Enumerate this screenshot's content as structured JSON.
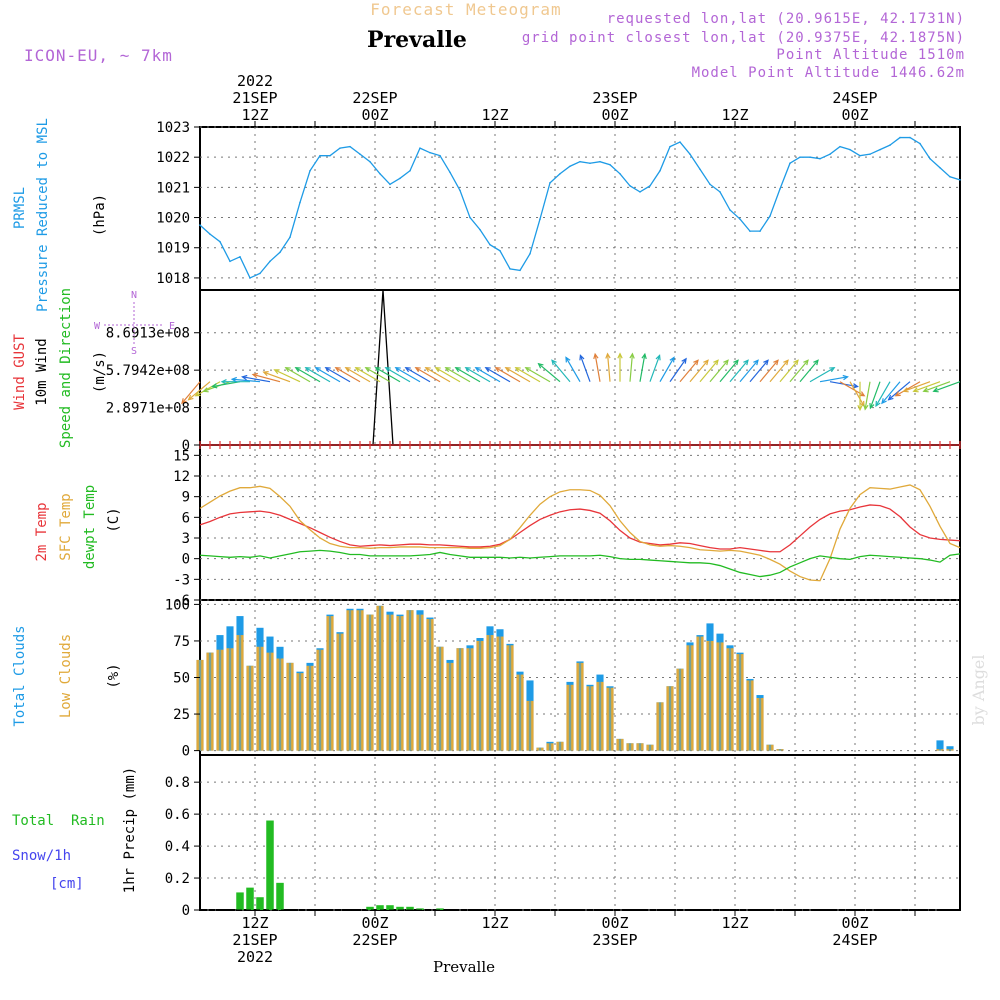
{
  "header": {
    "subtitle": "Forecast Meteogram",
    "location": "Prevalle",
    "model": "ICON-EU, ~ 7km",
    "requested": "requested lon,lat (20.9615E, 42.1731N)",
    "grid_point": "grid point closest lon,lat (20.9375E, 42.1875N)",
    "point_altitude": "Point Altitude 1510m",
    "model_altitude": "Model Point Altitude 1446.62m",
    "footer_location": "Prevalle",
    "watermark": "by Angel"
  },
  "time_axis": {
    "top_labels": [
      {
        "t": 12,
        "lines": [
          "2022",
          "21SEP",
          "12Z"
        ]
      },
      {
        "t": 24,
        "lines": [
          "22SEP",
          "00Z"
        ]
      },
      {
        "t": 36,
        "lines": [
          "12Z"
        ]
      },
      {
        "t": 48,
        "lines": [
          "23SEP",
          "00Z"
        ]
      },
      {
        "t": 60,
        "lines": [
          "12Z"
        ]
      },
      {
        "t": 72,
        "lines": [
          "24SEP",
          "00Z"
        ]
      }
    ],
    "bottom_labels": [
      {
        "t": 12,
        "lines": [
          "12Z",
          "21SEP",
          "2022"
        ]
      },
      {
        "t": 24,
        "lines": [
          "00Z",
          "22SEP"
        ]
      },
      {
        "t": 36,
        "lines": [
          "12Z"
        ]
      },
      {
        "t": 48,
        "lines": [
          "00Z",
          "23SEP"
        ]
      },
      {
        "t": 60,
        "lines": [
          "12Z"
        ]
      },
      {
        "t": 72,
        "lines": [
          "00Z",
          "24SEP"
        ]
      }
    ],
    "range_hours": [
      6.5,
      82.5
    ]
  },
  "colors": {
    "pressure": "#1e9be6",
    "gust": "#e8353a",
    "wind": "#000000",
    "temp2m": "#e8353a",
    "sfctemp": "#e0a93a",
    "dewpt": "#22bb22",
    "total_clouds": "#1e9be6",
    "low_clouds": "#e0a93a",
    "rain": "#22bb22",
    "snow": "#4444ee",
    "purple": "#b366d6",
    "title_orange": "#f0c890",
    "grid": "#777777"
  },
  "panel_labels": {
    "pressure": {
      "lines": [
        "PRMSL",
        "Pressure Reduced to MSL"
      ],
      "unit": "(hPa)"
    },
    "wind": {
      "gust": "Wind GUST",
      "wind10": "10m Wind",
      "speed_dir": "Speed and Direction",
      "unit": "(m/s)"
    },
    "temp": {
      "t2m": "2m Temp",
      "sfc": "SFC Temp",
      "dewpt": "dewpt Temp",
      "unit": "(C)"
    },
    "clouds": {
      "total": "Total Clouds",
      "low": "Low Clouds",
      "unit": "(%)"
    },
    "precip": {
      "rain": "Total  Rain",
      "snow": "Snow/1h",
      "snow_unit": "[cm]",
      "axis": "1hr Precip (mm)"
    },
    "compass": {
      "n": "N",
      "s": "S",
      "e": "E",
      "w": "W"
    }
  },
  "chart_data": [
    {
      "type": "line",
      "name": "pressure",
      "title": "PRMSL Pressure Reduced to MSL",
      "ylabel": "(hPa)",
      "ylim": [
        1017.6,
        1023
      ],
      "yticks": [
        1018,
        1019,
        1020,
        1021,
        1022,
        1023
      ],
      "x_hours": [
        6.5,
        7.5,
        8.5,
        9.5,
        10.5,
        11.5,
        12.5,
        13.5,
        14.5,
        15.5,
        16.5,
        17.5,
        18.5,
        19.5,
        20.5,
        21.5,
        22.5,
        23.5,
        24.5,
        25.5,
        26.5,
        27.5,
        28.5,
        29.5,
        30.5,
        31.5,
        32.5,
        33.5,
        34.5,
        35.5,
        36.5,
        37.5,
        38.5,
        39.5,
        40.5,
        41.5,
        42.5,
        43.5,
        44.5,
        45.5,
        46.5,
        47.5,
        48.5,
        49.5,
        50.5,
        51.5,
        52.5,
        53.5,
        54.5,
        55.5,
        56.5,
        57.5,
        58.5,
        59.5,
        60.5,
        61.5,
        62.5,
        63.5,
        64.5,
        65.5,
        66.5,
        67.5,
        68.5,
        69.5,
        70.5,
        71.5,
        72.5,
        73.5,
        74.5,
        75.5,
        76.5,
        77.5,
        78.5,
        79.5,
        80.5,
        81.5,
        82.5
      ],
      "values": [
        1019.75,
        1019.45,
        1019.2,
        1018.55,
        1018.7,
        1018.0,
        1018.15,
        1018.55,
        1018.85,
        1019.35,
        1020.5,
        1021.55,
        1022.05,
        1022.05,
        1022.3,
        1022.35,
        1022.1,
        1021.85,
        1021.45,
        1021.1,
        1021.3,
        1021.55,
        1022.3,
        1022.15,
        1022.05,
        1021.5,
        1020.9,
        1020.0,
        1019.6,
        1019.1,
        1018.9,
        1018.3,
        1018.25,
        1018.8,
        1019.95,
        1021.15,
        1021.45,
        1021.7,
        1021.85,
        1021.8,
        1021.85,
        1021.75,
        1021.45,
        1021.05,
        1020.85,
        1021.05,
        1021.55,
        1022.35,
        1022.5,
        1022.1,
        1021.6,
        1021.1,
        1020.85,
        1020.25,
        1019.95,
        1019.55,
        1019.55,
        1020.05,
        1020.95,
        1021.8,
        1022.0,
        1022.0,
        1021.95,
        1022.1,
        1022.35,
        1022.25,
        1022.05,
        1022.1,
        1022.25,
        1022.4,
        1022.65,
        1022.65,
        1022.45,
        1021.95,
        1021.65,
        1021.35,
        1021.25
      ]
    },
    {
      "type": "line",
      "name": "wind",
      "title": "Wind GUST / 10m Wind Speed and Direction",
      "ylabel": "(m/s)",
      "ylim": [
        0,
        1200000000.0
      ],
      "ytick_labels": [
        "0",
        "2.8971e+08",
        "5.7942e+08",
        "8.6913e+08"
      ],
      "yticks": [
        0,
        289710000,
        579420000,
        869130000
      ],
      "spike": {
        "x_hours": [
          23.8,
          24.8,
          25.8
        ],
        "values": [
          0,
          1200000000.0,
          0
        ]
      },
      "gust_values": "all 0",
      "arrow_level": 490000000,
      "arrow_dirs": [
        220,
        230,
        240,
        250,
        260,
        270,
        275,
        280,
        285,
        290,
        295,
        300,
        300,
        300,
        300,
        300,
        300,
        300,
        300,
        300,
        300,
        300,
        300,
        300,
        300,
        300,
        300,
        300,
        300,
        300,
        300,
        300,
        300,
        300,
        300,
        300,
        310,
        320,
        330,
        340,
        350,
        355,
        0,
        5,
        10,
        20,
        30,
        35,
        40,
        40,
        40,
        40,
        40,
        40,
        40,
        40,
        40,
        40,
        40,
        40,
        40,
        60,
        80,
        100,
        120,
        150,
        180,
        190,
        200,
        210,
        220,
        230,
        240,
        250,
        250,
        250,
        250
      ],
      "arrow_color_keys": [
        0.5,
        0.5,
        0.5,
        0.5,
        0.5,
        0.5,
        0.5,
        0.5,
        0.5,
        0.5,
        0.5,
        0.5,
        0.5,
        0.5,
        0.5,
        0.5,
        0.5,
        0.5,
        0.5,
        0.5,
        0.5,
        0.5,
        0.5,
        0.5,
        0.5,
        0.5,
        0.5,
        0.5,
        0.5,
        0.5,
        0.5,
        0.5,
        0.5,
        0.5,
        0.5,
        0.5,
        0.5,
        0.5,
        0.5,
        0.5,
        0.5,
        0.5,
        0.5,
        0.5,
        0.5,
        0.5,
        0.5,
        0.5,
        0.5,
        0.5,
        0.5,
        0.5,
        0.5,
        0.5,
        0.5,
        0.5,
        0.5,
        0.5,
        0.5,
        0.5,
        0.5,
        0.5,
        0.5,
        0.5,
        0.5,
        0.5,
        0.5,
        0.5,
        0.5,
        0.5,
        0.5,
        0.5,
        0.5,
        0.5,
        0.5,
        0.5,
        0.5
      ]
    },
    {
      "type": "line",
      "name": "temperature",
      "title": "2m Temp / SFC Temp / dewpt Temp",
      "ylabel": "(C)",
      "ylim": [
        -6,
        16.5
      ],
      "yticks": [
        -6,
        -3,
        0,
        3,
        6,
        9,
        12,
        15
      ],
      "series": [
        {
          "name": "2m Temp",
          "color_key": "temp2m",
          "values": [
            4.9,
            5.4,
            6.0,
            6.5,
            6.7,
            6.8,
            6.9,
            6.7,
            6.3,
            5.7,
            5.1,
            4.5,
            3.8,
            3.1,
            2.5,
            2.0,
            1.8,
            1.9,
            2.0,
            1.9,
            2.0,
            2.1,
            2.1,
            2.0,
            2.0,
            1.9,
            1.8,
            1.7,
            1.7,
            1.8,
            2.1,
            2.8,
            3.8,
            4.8,
            5.7,
            6.3,
            6.8,
            7.1,
            7.2,
            7.0,
            6.6,
            5.5,
            4.1,
            3.0,
            2.4,
            2.2,
            2.0,
            2.1,
            2.3,
            2.2,
            1.9,
            1.6,
            1.4,
            1.4,
            1.6,
            1.4,
            1.2,
            1.0,
            1.0,
            2.0,
            3.3,
            4.6,
            5.7,
            6.5,
            6.9,
            7.1,
            7.5,
            7.8,
            7.7,
            7.2,
            6.1,
            4.6,
            3.5,
            3.0,
            2.8,
            2.7,
            2.6
          ]
        },
        {
          "name": "SFC Temp",
          "color_key": "sfctemp",
          "values": [
            7.3,
            8.2,
            9.1,
            9.8,
            10.3,
            10.3,
            10.5,
            10.2,
            9.0,
            7.6,
            5.5,
            4.2,
            3.0,
            2.2,
            1.8,
            1.6,
            1.6,
            1.5,
            1.6,
            1.6,
            1.7,
            1.7,
            1.7,
            1.6,
            1.6,
            1.6,
            1.6,
            1.5,
            1.5,
            1.6,
            1.9,
            2.8,
            4.5,
            6.3,
            7.9,
            9.0,
            9.7,
            10.0,
            10.0,
            9.9,
            9.2,
            7.7,
            5.5,
            3.8,
            2.5,
            2.0,
            1.8,
            1.9,
            1.8,
            1.6,
            1.3,
            1.2,
            1.1,
            1.2,
            1.1,
            0.8,
            0.5,
            -0.1,
            -0.8,
            -1.8,
            -2.6,
            -3.1,
            -3.2,
            0.0,
            4.3,
            7.3,
            9.3,
            10.3,
            10.2,
            10.1,
            10.4,
            10.7,
            10.0,
            7.6,
            4.7,
            2.2,
            1.6
          ]
        },
        {
          "name": "dewpt Temp",
          "color_key": "dewpt",
          "values": [
            0.5,
            0.4,
            0.3,
            0.2,
            0.3,
            0.2,
            0.4,
            0.1,
            0.4,
            0.7,
            1.0,
            1.1,
            1.2,
            1.1,
            0.9,
            0.6,
            0.6,
            0.4,
            0.4,
            0.4,
            0.4,
            0.4,
            0.5,
            0.6,
            0.9,
            0.6,
            0.4,
            0.2,
            0.2,
            0.2,
            0.2,
            0.1,
            0.2,
            0.1,
            0.2,
            0.3,
            0.4,
            0.4,
            0.4,
            0.4,
            0.5,
            0.3,
            0.0,
            -0.1,
            -0.1,
            -0.2,
            -0.3,
            -0.4,
            -0.5,
            -0.6,
            -0.6,
            -0.7,
            -1.0,
            -1.5,
            -2.0,
            -2.3,
            -2.6,
            -2.4,
            -2.0,
            -1.2,
            -0.6,
            0.0,
            0.4,
            0.2,
            0.0,
            -0.1,
            0.3,
            0.5,
            0.4,
            0.3,
            0.2,
            0.1,
            0.0,
            -0.2,
            -0.5,
            0.5,
            0.7
          ]
        }
      ]
    },
    {
      "type": "bar",
      "name": "clouds",
      "title": "Total Clouds / Low Clouds",
      "ylabel": "(%)",
      "ylim": [
        -3,
        103
      ],
      "yticks": [
        0,
        25,
        50,
        75,
        100
      ],
      "series": [
        {
          "name": "Total Clouds",
          "color_key": "total_clouds",
          "values": [
            62,
            67,
            79,
            85,
            92,
            58,
            84,
            78,
            71,
            60,
            54,
            60,
            70,
            93,
            81,
            97,
            97,
            93,
            99,
            95,
            93,
            96,
            96,
            91,
            71,
            62,
            70,
            72,
            77,
            85,
            83,
            73,
            54,
            48,
            2,
            6,
            6,
            47,
            61,
            45,
            52,
            44,
            8,
            5,
            5,
            4,
            33,
            44,
            56,
            74,
            79,
            87,
            80,
            72,
            67,
            49,
            38,
            4,
            1,
            0,
            0,
            0,
            0,
            0,
            0,
            0,
            0,
            0,
            0,
            0,
            0,
            0,
            0,
            0,
            7,
            3,
            0
          ]
        },
        {
          "name": "Low Clouds",
          "color_key": "low_clouds",
          "values": [
            62,
            67,
            69,
            70,
            79,
            58,
            71,
            67,
            63,
            60,
            53,
            58,
            69,
            92,
            80,
            96,
            96,
            93,
            99,
            93,
            92,
            96,
            93,
            90,
            71,
            60,
            70,
            70,
            75,
            79,
            78,
            72,
            52,
            34,
            2,
            5,
            6,
            45,
            60,
            44,
            47,
            43,
            8,
            5,
            5,
            4,
            33,
            44,
            56,
            72,
            78,
            75,
            74,
            70,
            66,
            48,
            36,
            4,
            1,
            0,
            0,
            0,
            0,
            0,
            0,
            0,
            0,
            0,
            0,
            0,
            0,
            0,
            0,
            0,
            1,
            1,
            0
          ]
        }
      ]
    },
    {
      "type": "bar",
      "name": "precipitation",
      "title": "1hr Precip (mm)",
      "ylabel": "1hr Precip (mm)",
      "ylim": [
        0,
        0.97
      ],
      "yticks": [
        0,
        0.2,
        0.4,
        0.6,
        0.8
      ],
      "ytick_labels": [
        "0",
        "0.2",
        "0.4",
        "0.6",
        "0.8"
      ],
      "series": [
        {
          "name": "Total Rain",
          "color_key": "rain",
          "values": [
            0,
            0,
            0,
            0,
            0.11,
            0.14,
            0.08,
            0.56,
            0.17,
            0,
            0,
            0,
            0,
            0,
            0,
            0,
            0,
            0.02,
            0.03,
            0.03,
            0.02,
            0.02,
            0.01,
            0,
            0.01,
            0,
            0,
            0,
            0,
            0,
            0,
            0,
            0,
            0,
            0,
            0,
            0,
            0,
            0,
            0,
            0,
            0,
            0,
            0,
            0,
            0,
            0,
            0,
            0,
            0,
            0,
            0,
            0,
            0,
            0,
            0,
            0,
            0,
            0,
            0,
            0,
            0,
            0,
            0,
            0,
            0,
            0,
            0,
            0,
            0,
            0,
            0,
            0,
            0,
            0,
            0,
            0
          ]
        }
      ]
    }
  ]
}
